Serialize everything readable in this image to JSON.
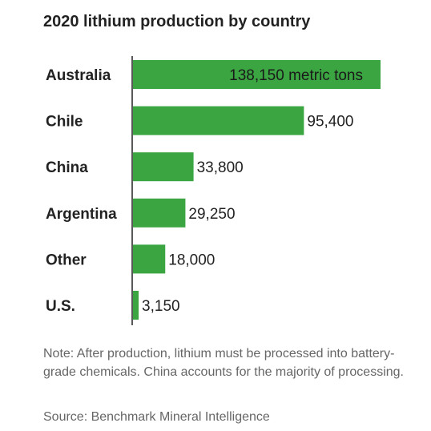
{
  "chart_data": {
    "type": "bar",
    "orientation": "horizontal",
    "title": "2020 lithium production by country",
    "categories": [
      "Australia",
      "Chile",
      "China",
      "Argentina",
      "Other",
      "U.S."
    ],
    "values": [
      138150,
      95400,
      33800,
      29250,
      18000,
      3150
    ],
    "value_labels": [
      "138,150 metric tons",
      "95,400",
      "33,800",
      "29,250",
      "18,000",
      "3,150"
    ],
    "xlabel": "",
    "ylabel": "",
    "xlim": [
      0,
      138150
    ],
    "grid": false,
    "bar_color": "#3aa541"
  },
  "note": "Note: After production, lithium must be processed into battery-grade chemicals. China accounts for the majority of processing.",
  "source": "Source: Benchmark Mineral Intelligence"
}
